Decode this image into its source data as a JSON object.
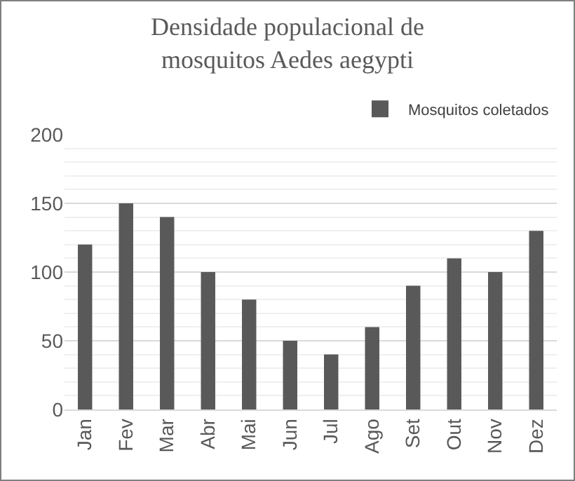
{
  "chart_data": {
    "type": "bar",
    "title": "Densidade populacional de\nmosquitos Aedes aegypti",
    "categories": [
      "Jan",
      "Fev",
      "Mar",
      "Abr",
      "Mai",
      "Jun",
      "Jul",
      "Ago",
      "Set",
      "Out",
      "Nov",
      "Dez"
    ],
    "series": [
      {
        "name": "Mosquitos coletados",
        "color": "#595959",
        "values": [
          120,
          150,
          140,
          100,
          80,
          50,
          40,
          60,
          90,
          110,
          100,
          130
        ]
      }
    ],
    "ylim": [
      0,
      200
    ],
    "yticks": [
      0,
      50,
      100,
      150,
      200
    ],
    "grid": "y",
    "legend": "top right"
  }
}
